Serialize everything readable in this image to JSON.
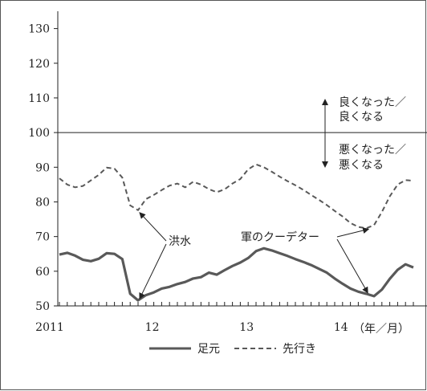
{
  "chart_data": {
    "type": "line",
    "ylim": [
      50,
      135
    ],
    "yticks": [
      "130",
      "120",
      "110",
      "100",
      "90",
      "80",
      "70",
      "60",
      "50"
    ],
    "xtick_labels": [
      {
        "label": "2011",
        "x": 0
      },
      {
        "label": "12",
        "x": 12
      },
      {
        "label": "13",
        "x": 24
      },
      {
        "label": "14",
        "x": 36
      }
    ],
    "xlim": [
      0,
      45
    ],
    "unit_label": "（年／月）",
    "reference_line": 100,
    "series": [
      {
        "name": "足元",
        "style": "solid",
        "color": "#595959",
        "values": [
          64.8,
          65.3,
          64.5,
          63.3,
          62.9,
          63.6,
          65.2,
          65.0,
          63.5,
          53.5,
          51.6,
          53.1,
          53.9,
          55.0,
          55.5,
          56.3,
          56.9,
          57.9,
          58.3,
          59.6,
          59.0,
          60.3,
          61.5,
          62.5,
          63.8,
          65.8,
          66.6,
          66.0,
          65.2,
          64.4,
          63.5,
          62.7,
          61.8,
          60.7,
          59.6,
          57.9,
          56.4,
          55.0,
          54.1,
          53.5,
          52.8,
          54.7,
          57.8,
          60.4,
          62.0,
          61.1
        ]
      },
      {
        "name": "先行き",
        "style": "dashed",
        "color": "#595959",
        "values": [
          86.8,
          85.0,
          84.2,
          84.6,
          86.2,
          87.8,
          89.9,
          89.6,
          87.0,
          79.0,
          77.6,
          80.8,
          82.0,
          83.4,
          84.7,
          85.3,
          84.2,
          85.8,
          85.0,
          83.7,
          82.8,
          83.6,
          85.3,
          86.6,
          89.4,
          90.8,
          90.0,
          88.7,
          87.3,
          86.0,
          84.8,
          83.5,
          82.0,
          80.6,
          79.1,
          77.4,
          75.8,
          73.9,
          72.8,
          72.4,
          73.3,
          77.1,
          81.6,
          85.0,
          86.3,
          86.1
        ]
      }
    ],
    "annotations": [
      {
        "text": "洪水"
      },
      {
        "text": "軍のクーデター"
      },
      {
        "line1": "良くなった／",
        "line2": "良くなる"
      },
      {
        "line1": "悪くなった／",
        "line2": "悪くなる"
      }
    ]
  }
}
